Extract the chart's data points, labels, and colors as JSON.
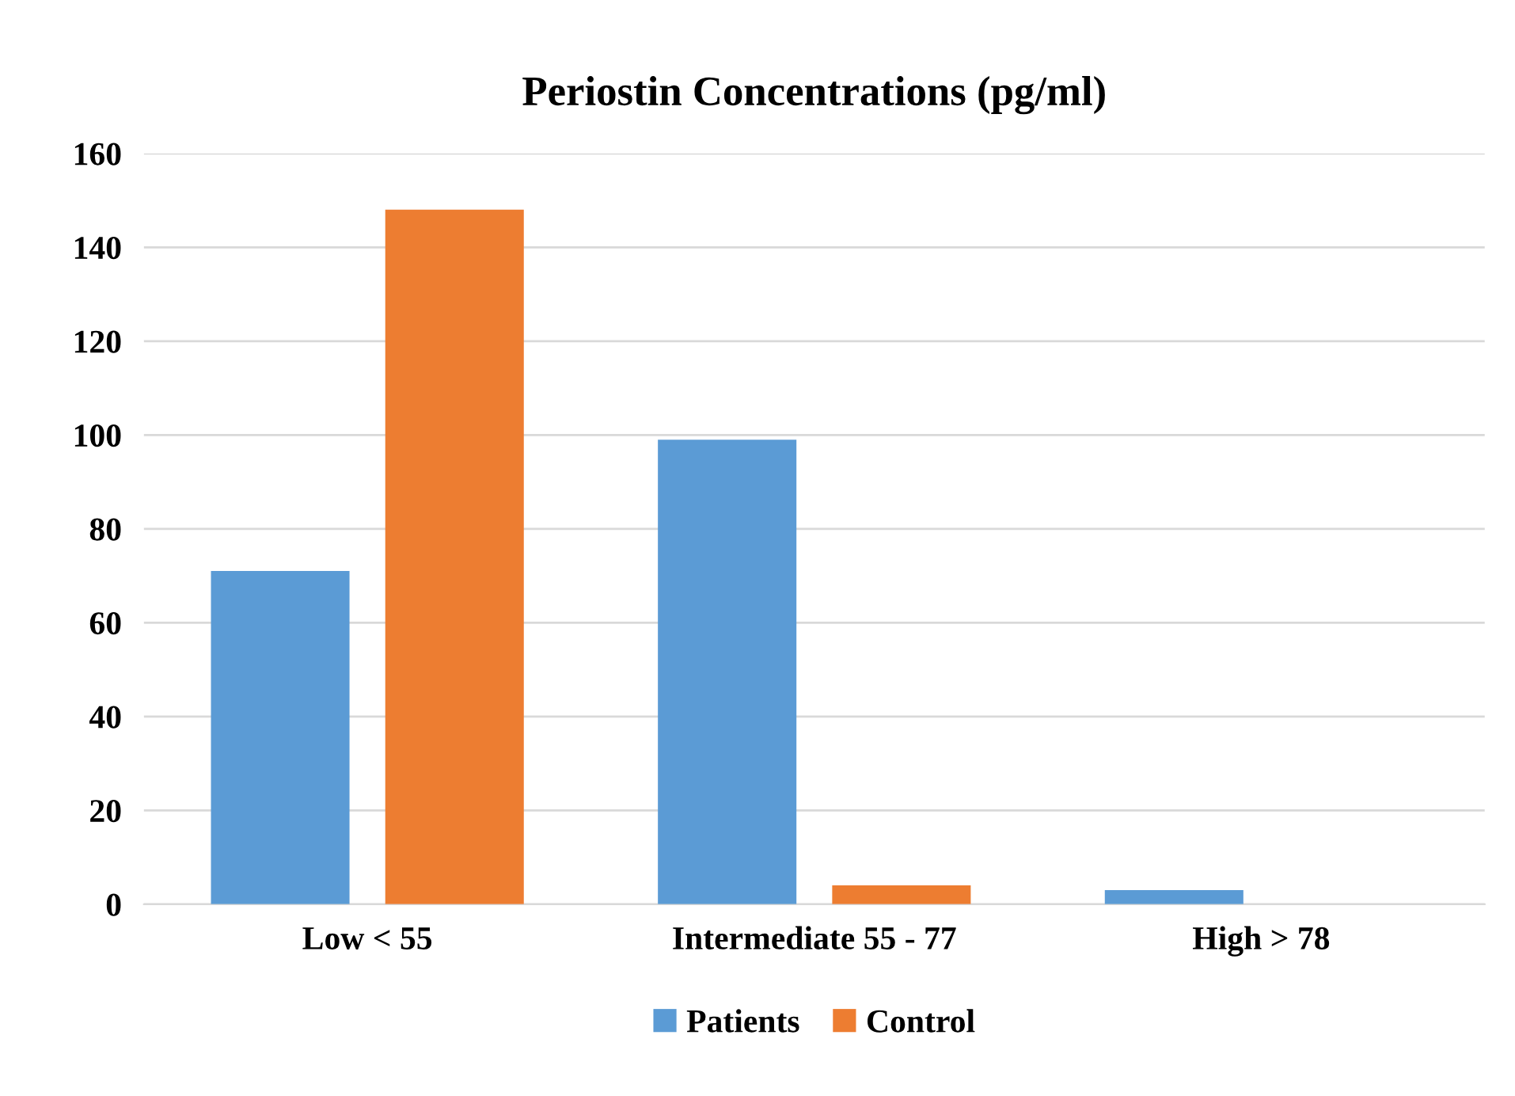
{
  "chart_data": {
    "type": "bar",
    "title": "Periostin Concentrations (pg/ml)",
    "categories": [
      "Low < 55",
      "Intermediate 55 - 77",
      "High > 78"
    ],
    "series": [
      {
        "name": "Patients",
        "color": "#5b9bd5",
        "values": [
          71,
          99,
          3
        ]
      },
      {
        "name": "Control",
        "color": "#ed7d31",
        "values": [
          148,
          4,
          0
        ]
      }
    ],
    "ylim": [
      0,
      160
    ],
    "yticks": [
      0,
      20,
      40,
      60,
      80,
      100,
      120,
      140,
      160
    ],
    "grid": "y",
    "legend": "bottom"
  }
}
